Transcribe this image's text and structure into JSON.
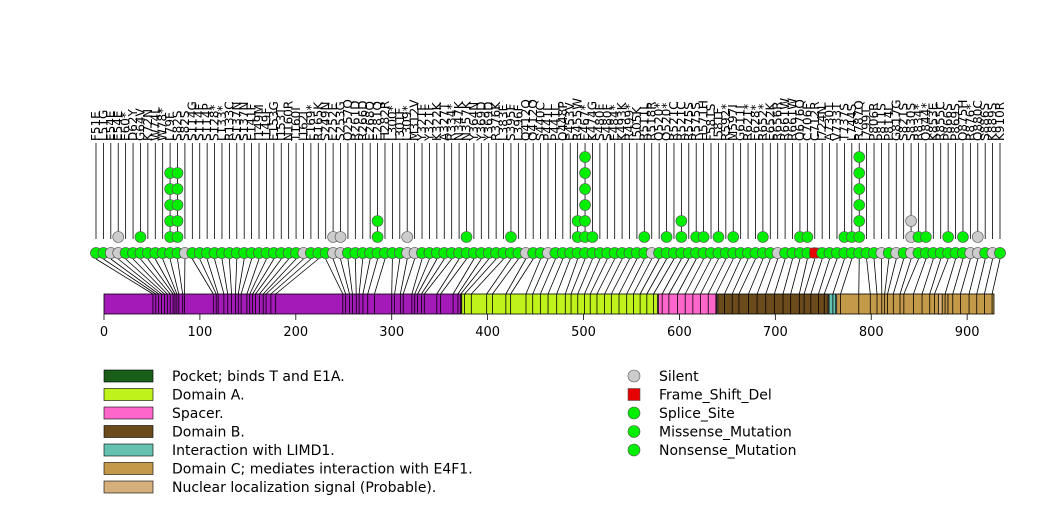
{
  "chart_data": {
    "type": "lollipop",
    "title": "",
    "xlabel": "",
    "ylabel": "",
    "xlim": [
      0,
      928
    ],
    "x_ticks": [
      0,
      100,
      200,
      300,
      400,
      500,
      600,
      700,
      800,
      900
    ],
    "domains": [
      {
        "name": "Pocket; binds T and E1A.",
        "start": 0,
        "end": 928,
        "color": "#1a5e1a",
        "segments": [
          [
            373,
            577
          ],
          [
            640,
            755
          ]
        ]
      },
      {
        "name": "Domain A.",
        "start": 373,
        "end": 577,
        "color": "#bff21a"
      },
      {
        "name": "Spacer.",
        "start": 578,
        "end": 639,
        "color": "#ff66cc"
      },
      {
        "name": "Domain B.",
        "start": 640,
        "end": 755,
        "color": "#6b4a1c"
      },
      {
        "name": "Interaction with LIMD1.",
        "start": 756,
        "end": 763,
        "color": "#66c2b0"
      },
      {
        "name": "Domain C; mediates interaction with E4F1.",
        "start": 764,
        "end": 880,
        "color": "#c49a4a"
      },
      {
        "name": "Nuclear localization signal (Probable).",
        "start": 870,
        "end": 874,
        "color": "#d6b07c"
      }
    ],
    "backbone": {
      "start": 0,
      "end": 372,
      "color": "#a31ab8"
    },
    "mutation_types": [
      {
        "name": "Silent",
        "color": "#cccccc",
        "shape": "circle"
      },
      {
        "name": "Frame_Shift_Del",
        "color": "#e60000",
        "shape": "square"
      },
      {
        "name": "Splice_Site",
        "color": "#00ee00",
        "shape": "circle"
      },
      {
        "name": "Missense_Mutation",
        "color": "#00ee00",
        "shape": "circle"
      },
      {
        "name": "Nonsense_Mutation",
        "color": "#00ee00",
        "shape": "circle"
      }
    ],
    "mutations": [
      {
        "label": "F51E",
        "pos": 51,
        "count": 1,
        "type": "Missense_Mutation"
      },
      {
        "label": "L51G",
        "pos": 54,
        "count": 1,
        "type": "Missense_Mutation"
      },
      {
        "label": "E54E",
        "pos": 57,
        "count": 1,
        "type": "Silent"
      },
      {
        "label": "E54E",
        "pos": 60,
        "count": 2,
        "type": "Silent"
      },
      {
        "label": "E60*",
        "pos": 63,
        "count": 1,
        "type": "Nonsense_Mutation"
      },
      {
        "label": "D62Y",
        "pos": 66,
        "count": 1,
        "type": "Missense_Mutation"
      },
      {
        "label": "G64V",
        "pos": 69,
        "count": 2,
        "type": "Missense_Mutation"
      },
      {
        "label": "K72N",
        "pos": 72,
        "count": 1,
        "type": "Missense_Mutation"
      },
      {
        "label": "W74L",
        "pos": 74,
        "count": 1,
        "type": "Missense_Mutation"
      },
      {
        "label": "W78*",
        "pos": 76,
        "count": 1,
        "type": "Nonsense_Mutation"
      },
      {
        "label": "L79F",
        "pos": 78,
        "count": 6,
        "type": "Missense_Mutation"
      },
      {
        "label": "S82S",
        "pos": 82,
        "count": 6,
        "type": "Missense_Mutation"
      },
      {
        "label": "S82S",
        "pos": 84,
        "count": 1,
        "type": "Silent"
      },
      {
        "label": "S114G",
        "pos": 114,
        "count": 1,
        "type": "Missense_Mutation"
      },
      {
        "label": "S114F",
        "pos": 117,
        "count": 1,
        "type": "Missense_Mutation"
      },
      {
        "label": "S114P",
        "pos": 119,
        "count": 1,
        "type": "Missense_Mutation"
      },
      {
        "label": "S128*",
        "pos": 125,
        "count": 1,
        "type": "Nonsense_Mutation"
      },
      {
        "label": "L133*",
        "pos": 129,
        "count": 1,
        "type": "Nonsense_Mutation"
      },
      {
        "label": "R133C",
        "pos": 133,
        "count": 1,
        "type": "Missense_Mutation"
      },
      {
        "label": "S137N",
        "pos": 137,
        "count": 1,
        "type": "Missense_Mutation"
      },
      {
        "label": "S137N",
        "pos": 140,
        "count": 1,
        "type": "Missense_Mutation"
      },
      {
        "label": "E141F",
        "pos": 143,
        "count": 1,
        "type": "Missense_Mutation"
      },
      {
        "label": "I149M",
        "pos": 149,
        "count": 1,
        "type": "Missense_Mutation"
      },
      {
        "label": "I149F",
        "pos": 152,
        "count": 1,
        "type": "Missense_Mutation"
      },
      {
        "label": "E153G",
        "pos": 155,
        "count": 1,
        "type": "Missense_Mutation"
      },
      {
        "label": "I153T",
        "pos": 158,
        "count": 1,
        "type": "Missense_Mutation"
      },
      {
        "label": "N160R",
        "pos": 162,
        "count": 1,
        "type": "Missense_Mutation"
      },
      {
        "label": "T160I",
        "pos": 166,
        "count": 1,
        "type": "Missense_Mutation"
      },
      {
        "label": "I162I",
        "pos": 169,
        "count": 1,
        "type": "Silent"
      },
      {
        "label": "E169*",
        "pos": 174,
        "count": 1,
        "type": "Nonsense_Mutation"
      },
      {
        "label": "R165K",
        "pos": 179,
        "count": 1,
        "type": "Missense_Mutation"
      },
      {
        "label": "S249N",
        "pos": 249,
        "count": 1,
        "type": "Missense_Mutation"
      },
      {
        "label": "E252E",
        "pos": 252,
        "count": 2,
        "type": "Silent"
      },
      {
        "label": "S253G",
        "pos": 256,
        "count": 2,
        "type": "Silent"
      },
      {
        "label": "Q257Q",
        "pos": 259,
        "count": 1,
        "type": "Missense_Mutation"
      },
      {
        "label": "R261D",
        "pos": 263,
        "count": 1,
        "type": "Missense_Mutation"
      },
      {
        "label": "R266D",
        "pos": 266,
        "count": 1,
        "type": "Missense_Mutation"
      },
      {
        "label": "E268Q",
        "pos": 270,
        "count": 1,
        "type": "Missense_Mutation"
      },
      {
        "label": "E281Q",
        "pos": 275,
        "count": 3,
        "type": "Missense_Mutation"
      },
      {
        "label": "H282R",
        "pos": 282,
        "count": 1,
        "type": "Missense_Mutation"
      },
      {
        "label": "L300*",
        "pos": 300,
        "count": 1,
        "type": "Nonsense_Mutation"
      },
      {
        "label": "I301F",
        "pos": 303,
        "count": 1,
        "type": "Missense_Mutation"
      },
      {
        "label": "L309*",
        "pos": 309,
        "count": 2,
        "type": "Silent"
      },
      {
        "label": "M312V",
        "pos": 312,
        "count": 1,
        "type": "Silent"
      },
      {
        "label": "Y321F",
        "pos": 321,
        "count": 1,
        "type": "Missense_Mutation"
      },
      {
        "label": "Y321F",
        "pos": 324,
        "count": 1,
        "type": "Missense_Mutation"
      },
      {
        "label": "K322K",
        "pos": 327,
        "count": 1,
        "type": "Missense_Mutation"
      },
      {
        "label": "A327T",
        "pos": 331,
        "count": 1,
        "type": "Missense_Mutation"
      },
      {
        "label": "R334*",
        "pos": 334,
        "count": 1,
        "type": "Nonsense_Mutation"
      },
      {
        "label": "N347K",
        "pos": 347,
        "count": 1,
        "type": "Missense_Mutation"
      },
      {
        "label": "N357K",
        "pos": 351,
        "count": 2,
        "type": "Missense_Mutation"
      },
      {
        "label": "Y364N",
        "pos": 364,
        "count": 1,
        "type": "Missense_Mutation"
      },
      {
        "label": "Y369D",
        "pos": 369,
        "count": 1,
        "type": "Missense_Mutation"
      },
      {
        "label": "Y369D",
        "pos": 372,
        "count": 1,
        "type": "Missense_Mutation"
      },
      {
        "label": "R376K",
        "pos": 376,
        "count": 1,
        "type": "Missense_Mutation"
      },
      {
        "label": "L383F",
        "pos": 383,
        "count": 1,
        "type": "Missense_Mutation"
      },
      {
        "label": "S395F",
        "pos": 399,
        "count": 2,
        "type": "Missense_Mutation"
      },
      {
        "label": "L396F",
        "pos": 405,
        "count": 1,
        "type": "Missense_Mutation"
      },
      {
        "label": "Q412Q",
        "pos": 419,
        "count": 1,
        "type": "Silent"
      },
      {
        "label": "Q412Q",
        "pos": 424,
        "count": 1,
        "type": "Missense_Mutation"
      },
      {
        "label": "S440C",
        "pos": 440,
        "count": 1,
        "type": "Missense_Mutation"
      },
      {
        "label": "P441L",
        "pos": 447,
        "count": 1,
        "type": "Silent"
      },
      {
        "label": "P441L",
        "pos": 455,
        "count": 1,
        "type": "Missense_Mutation"
      },
      {
        "label": "Q448P",
        "pos": 463,
        "count": 1,
        "type": "Missense_Mutation"
      },
      {
        "label": "E453V",
        "pos": 472,
        "count": 1,
        "type": "Missense_Mutation"
      },
      {
        "label": "R455W",
        "pos": 481,
        "count": 3,
        "type": "Missense_Mutation"
      },
      {
        "label": "E467*",
        "pos": 487,
        "count": 7,
        "type": "Nonsense_Mutation"
      },
      {
        "label": "K474G",
        "pos": 494,
        "count": 2,
        "type": "Missense_Mutation"
      },
      {
        "label": "S480F",
        "pos": 501,
        "count": 1,
        "type": "Missense_Mutation"
      },
      {
        "label": "S480F",
        "pos": 507,
        "count": 1,
        "type": "Missense_Mutation"
      },
      {
        "label": "E484*",
        "pos": 514,
        "count": 1,
        "type": "Nonsense_Mutation"
      },
      {
        "label": "K493K",
        "pos": 522,
        "count": 1,
        "type": "Missense_Mutation"
      },
      {
        "label": "R499*",
        "pos": 529,
        "count": 1,
        "type": "Nonsense_Mutation"
      },
      {
        "label": "I505K",
        "pos": 537,
        "count": 1,
        "type": "Missense_Mutation"
      },
      {
        "label": "R511L",
        "pos": 545,
        "count": 2,
        "type": "Missense_Mutation"
      },
      {
        "label": "R518R",
        "pos": 552,
        "count": 1,
        "type": "Silent"
      },
      {
        "label": "Q520*",
        "pos": 559,
        "count": 1,
        "type": "Nonsense_Mutation"
      },
      {
        "label": "Q520*",
        "pos": 566,
        "count": 2,
        "type": "Missense_Mutation"
      },
      {
        "label": "R521C",
        "pos": 573,
        "count": 1,
        "type": "Missense_Mutation"
      },
      {
        "label": "R521C",
        "pos": 582,
        "count": 3,
        "type": "Missense_Mutation"
      },
      {
        "label": "R575S",
        "pos": 589,
        "count": 1,
        "type": "Missense_Mutation"
      },
      {
        "label": "R575S",
        "pos": 598,
        "count": 2,
        "type": "Missense_Mutation"
      },
      {
        "label": "H571H",
        "pos": 606,
        "count": 2,
        "type": "Missense_Mutation"
      },
      {
        "label": "F581S",
        "pos": 614,
        "count": 1,
        "type": "Missense_Mutation"
      },
      {
        "label": "I581F",
        "pos": 622,
        "count": 2,
        "type": "Missense_Mutation"
      },
      {
        "label": "R592*",
        "pos": 630,
        "count": 1,
        "type": "Nonsense_Mutation"
      },
      {
        "label": "M597I",
        "pos": 638,
        "count": 2,
        "type": "Missense_Mutation"
      },
      {
        "label": "G611I",
        "pos": 647,
        "count": 1,
        "type": "Missense_Mutation"
      },
      {
        "label": "R621*",
        "pos": 655,
        "count": 1,
        "type": "Nonsense_Mutation"
      },
      {
        "label": "E628*",
        "pos": 662,
        "count": 1,
        "type": "Nonsense_Mutation"
      },
      {
        "label": "R652*",
        "pos": 672,
        "count": 2,
        "type": "Missense_Mutation"
      },
      {
        "label": "E652K",
        "pos": 681,
        "count": 1,
        "type": "Missense_Mutation"
      },
      {
        "label": "R656R",
        "pos": 690,
        "count": 1,
        "type": "Silent"
      },
      {
        "label": "R661W",
        "pos": 699,
        "count": 1,
        "type": "Missense_Mutation"
      },
      {
        "label": "R661W",
        "pos": 708,
        "count": 1,
        "type": "Missense_Mutation"
      },
      {
        "label": "Q676Q",
        "pos": 716,
        "count": 2,
        "type": "Missense_Mutation"
      },
      {
        "label": "C706F",
        "pos": 725,
        "count": 2,
        "type": "Missense_Mutation"
      },
      {
        "label": "C712R",
        "pos": 730,
        "count": 1,
        "type": "Frame_Shift_Del"
      },
      {
        "label": "I724N",
        "pos": 737,
        "count": 1,
        "type": "Missense_Mutation"
      },
      {
        "label": "A730T",
        "pos": 745,
        "count": 1,
        "type": "Missense_Mutation"
      },
      {
        "label": "V733T",
        "pos": 751,
        "count": 1,
        "type": "Missense_Mutation"
      },
      {
        "label": "T737S",
        "pos": 760,
        "count": 2,
        "type": "Missense_Mutation"
      },
      {
        "label": "L744S",
        "pos": 768,
        "count": 2,
        "type": "Missense_Mutation"
      },
      {
        "label": "R787Q",
        "pos": 787,
        "count": 7,
        "type": "Missense_Mutation"
      },
      {
        "label": "I799T",
        "pos": 799,
        "count": 1,
        "type": "Missense_Mutation"
      },
      {
        "label": "P806R",
        "pos": 806,
        "count": 1,
        "type": "Missense_Mutation"
      },
      {
        "label": "P811S",
        "pos": 811,
        "count": 1,
        "type": "Silent"
      },
      {
        "label": "P814L",
        "pos": 814,
        "count": 1,
        "type": "Missense_Mutation"
      },
      {
        "label": "G817G",
        "pos": 817,
        "count": 1,
        "type": "Silent"
      },
      {
        "label": "S821S",
        "pos": 823,
        "count": 1,
        "type": "Missense_Mutation"
      },
      {
        "label": "S830S",
        "pos": 830,
        "count": 3,
        "type": "Silent"
      },
      {
        "label": "R834*",
        "pos": 834,
        "count": 2,
        "type": "Nonsense_Mutation"
      },
      {
        "label": "Q844*",
        "pos": 844,
        "count": 2,
        "type": "Missense_Mutation"
      },
      {
        "label": "K853E",
        "pos": 853,
        "count": 1,
        "type": "Missense_Mutation"
      },
      {
        "label": "R855C",
        "pos": 861,
        "count": 1,
        "type": "Missense_Mutation"
      },
      {
        "label": "P866S",
        "pos": 866,
        "count": 2,
        "type": "Missense_Mutation"
      },
      {
        "label": "P869S",
        "pos": 877,
        "count": 1,
        "type": "Missense_Mutation"
      },
      {
        "label": "Q875H",
        "pos": 885,
        "count": 2,
        "type": "Missense_Mutation"
      },
      {
        "label": "R876*",
        "pos": 893,
        "count": 1,
        "type": "Silent"
      },
      {
        "label": "Q880C",
        "pos": 902,
        "count": 2,
        "type": "Silent"
      },
      {
        "label": "S886S",
        "pos": 910,
        "count": 1,
        "type": "Missense_Mutation"
      },
      {
        "label": "K889S",
        "pos": 918,
        "count": 1,
        "type": "Silent"
      },
      {
        "label": "K910R",
        "pos": 926,
        "count": 1,
        "type": "Missense_Mutation"
      }
    ]
  },
  "legend_left": [
    {
      "label": "Pocket; binds T and E1A.",
      "color": "#1a5e1a"
    },
    {
      "label": "Domain A.",
      "color": "#bff21a"
    },
    {
      "label": "Spacer.",
      "color": "#ff66cc"
    },
    {
      "label": "Domain B.",
      "color": "#6b4a1c"
    },
    {
      "label": "Interaction with LIMD1.",
      "color": "#66c2b0"
    },
    {
      "label": "Domain C; mediates interaction with E4F1.",
      "color": "#c49a4a"
    },
    {
      "label": "Nuclear localization signal (Probable).",
      "color": "#d6b07c"
    }
  ],
  "legend_right": [
    {
      "label": "Silent",
      "color": "#cccccc",
      "shape": "circle"
    },
    {
      "label": "Frame_Shift_Del",
      "color": "#e60000",
      "shape": "square"
    },
    {
      "label": "Splice_Site",
      "color": "#00ee00",
      "shape": "circle"
    },
    {
      "label": "Missense_Mutation",
      "color": "#00ee00",
      "shape": "circle"
    },
    {
      "label": "Nonsense_Mutation",
      "color": "#00ee00",
      "shape": "circle"
    }
  ]
}
